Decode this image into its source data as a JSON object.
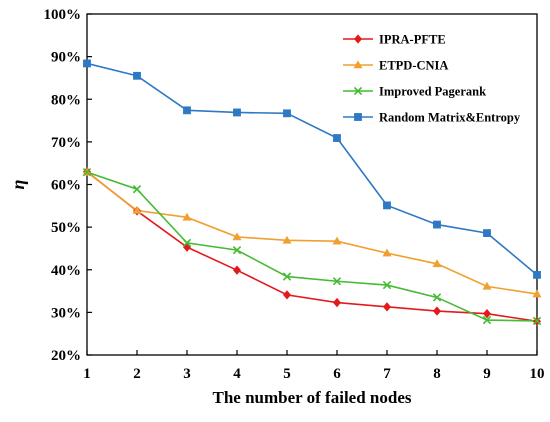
{
  "chart_data": {
    "type": "line",
    "title": "",
    "xlabel": "The number of failed nodes",
    "ylabel": "η",
    "x": [
      1,
      2,
      3,
      4,
      5,
      6,
      7,
      8,
      9,
      10
    ],
    "x_tick_labels": [
      "1",
      "2",
      "3",
      "4",
      "5",
      "6",
      "7",
      "8",
      "9",
      "10"
    ],
    "xlim": [
      1,
      10
    ],
    "ylim": [
      20,
      100
    ],
    "y_ticks": [
      20,
      30,
      40,
      50,
      60,
      70,
      80,
      90,
      100
    ],
    "y_tick_labels": [
      "20%",
      "30%",
      "40%",
      "50%",
      "60%",
      "70%",
      "80%",
      "90%",
      "100%"
    ],
    "grid": false,
    "legend_position": "top-right",
    "series": [
      {
        "name": "IPRA-PFTE",
        "color": "#e31a1c",
        "marker": "diamond",
        "values": [
          63.0,
          53.8,
          45.3,
          39.9,
          34.1,
          32.3,
          31.3,
          30.3,
          29.7,
          27.9
        ]
      },
      {
        "name": "ETPD-CNIA",
        "color": "#f0a030",
        "marker": "triangle",
        "values": [
          62.9,
          53.9,
          52.3,
          47.7,
          46.9,
          46.7,
          43.9,
          41.4,
          36.1,
          34.3
        ]
      },
      {
        "name": "Improved Pagerank",
        "color": "#44bb33",
        "marker": "x",
        "values": [
          62.9,
          58.9,
          46.3,
          44.6,
          38.4,
          37.3,
          36.4,
          33.5,
          28.2,
          28.0
        ]
      },
      {
        "name": "Random Matrix&Entropy",
        "color": "#2f78c4",
        "marker": "square",
        "values": [
          88.4,
          85.5,
          77.4,
          76.9,
          76.7,
          70.9,
          55.1,
          50.6,
          48.6,
          38.8
        ]
      }
    ]
  }
}
